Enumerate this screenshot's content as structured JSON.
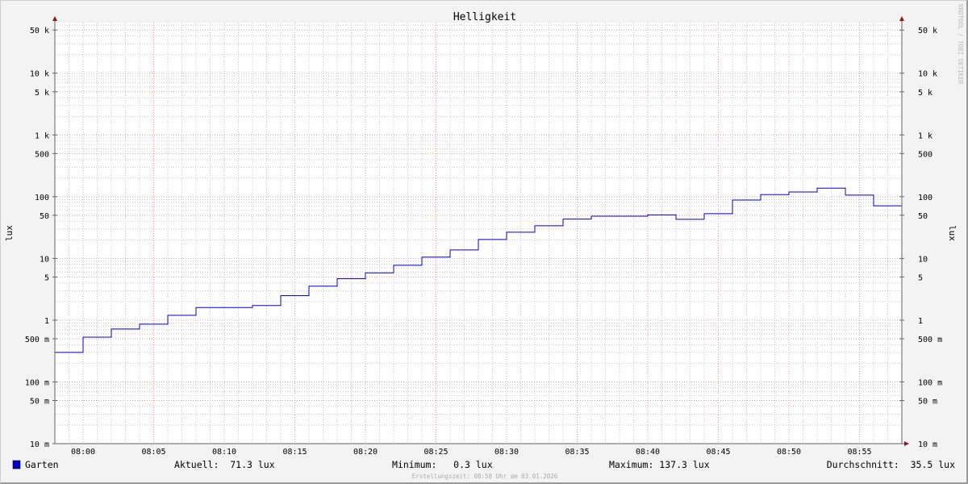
{
  "chart_data": {
    "type": "line",
    "title": "Helligkeit",
    "ylabel": "lux",
    "ylabel_right": "lux",
    "y_scale": "log",
    "ylim": [
      0.01,
      66000
    ],
    "xlim": [
      "07:58",
      "08:58"
    ],
    "grid": true,
    "line_style": "step",
    "x_ticks": [
      "08:00",
      "08:05",
      "08:10",
      "08:15",
      "08:20",
      "08:25",
      "08:30",
      "08:35",
      "08:40",
      "08:45",
      "08:50",
      "08:55"
    ],
    "y_ticks": [
      {
        "value": 0.01,
        "label": "10 m"
      },
      {
        "value": 0.05,
        "label": "50 m"
      },
      {
        "value": 0.1,
        "label": "100 m"
      },
      {
        "value": 0.5,
        "label": "500 m"
      },
      {
        "value": 1,
        "label": "1"
      },
      {
        "value": 5,
        "label": "5"
      },
      {
        "value": 10,
        "label": "10"
      },
      {
        "value": 50,
        "label": "50"
      },
      {
        "value": 100,
        "label": "100"
      },
      {
        "value": 500,
        "label": "500"
      },
      {
        "value": 1000,
        "label": "1 k"
      },
      {
        "value": 5000,
        "label": "5 k"
      },
      {
        "value": 10000,
        "label": "10 k"
      },
      {
        "value": 50000,
        "label": "50 k"
      }
    ],
    "series": [
      {
        "name": "Garten",
        "color": "#0000cc",
        "x": [
          "07:58",
          "08:00",
          "08:02",
          "08:04",
          "08:06",
          "08:08",
          "08:12",
          "08:14",
          "08:16",
          "08:18",
          "08:20",
          "08:22",
          "08:24",
          "08:26",
          "08:28",
          "08:30",
          "08:32",
          "08:34",
          "08:36",
          "08:40",
          "08:42",
          "08:44",
          "08:46",
          "08:48",
          "08:50",
          "08:52",
          "08:54",
          "08:56"
        ],
        "values": [
          0.3,
          0.53,
          0.72,
          0.86,
          1.2,
          1.6,
          1.73,
          2.5,
          3.55,
          4.7,
          5.85,
          7.75,
          10.5,
          13.7,
          20.3,
          26.6,
          33.8,
          43.4,
          48.4,
          50.8,
          43,
          53,
          88.3,
          108,
          119,
          137.3,
          106,
          71.3
        ]
      }
    ]
  },
  "legend": {
    "series_name": "Garten",
    "swatch_color": "#0000cc",
    "current": "Aktuell:  71.3 lux",
    "minimum": "Minimum:   0.3 lux",
    "maximum": "Maximum: 137.3 lux",
    "average": "Durchschnitt:  35.5 lux"
  },
  "footer": "Erstellungszeit: 08:58 Uhr am 03.01.2026",
  "watermark": "RRDTOOL / TOBI OETIKER",
  "colors": {
    "background": "#f3f3f3",
    "plot": "#ffffff",
    "grid_minor": "#c8c8c8",
    "grid_major": "#e0a0a0",
    "arrow": "#8b1a1a"
  }
}
